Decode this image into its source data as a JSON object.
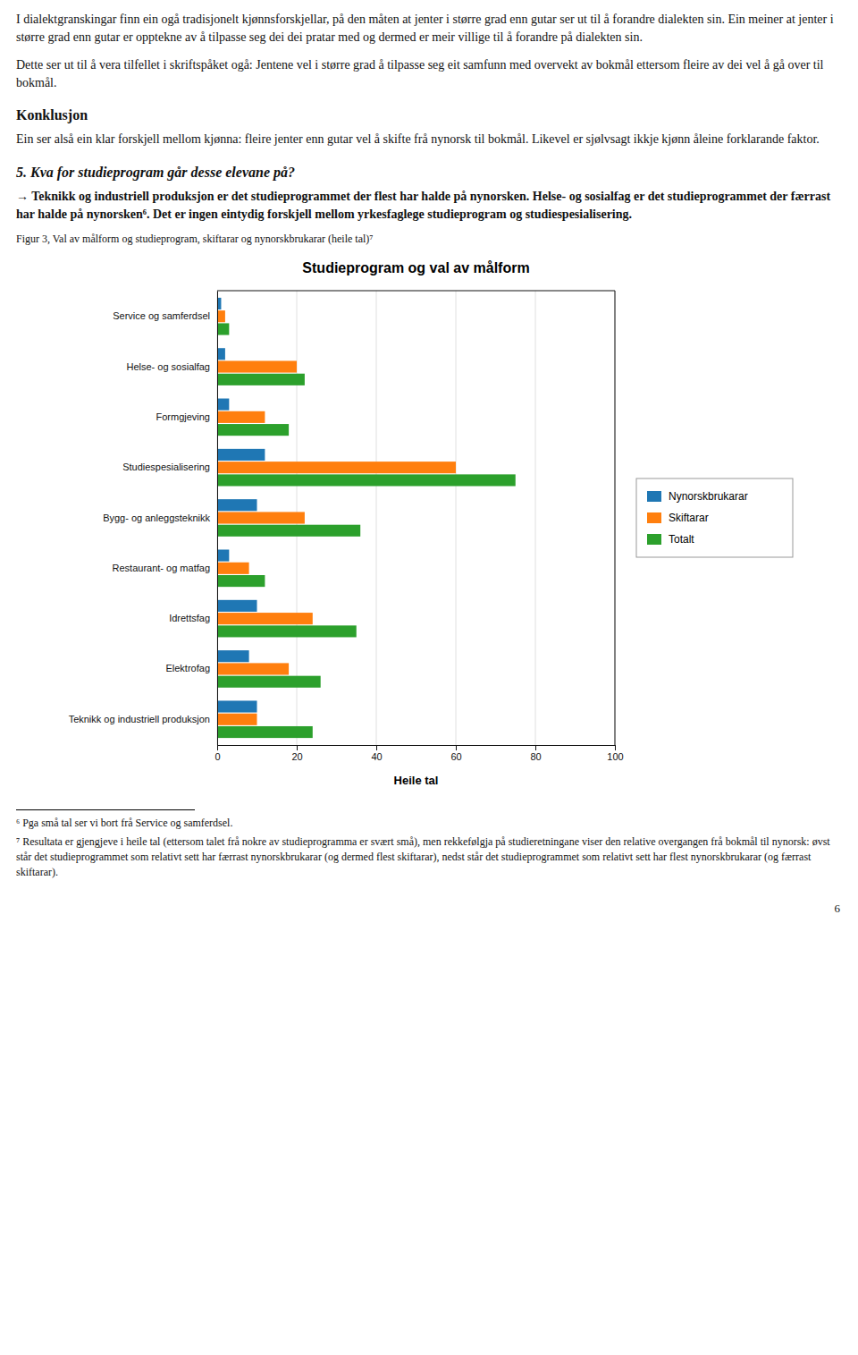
{
  "page_text": [
    {
      "kind": "paragraph",
      "text": "I dialektgranskingar finn ein ogå tradisjonelt kjønnsforskjellar, på den måten at jenter i større grad enn gutar ser ut til å forandre dialekten sin. Ein meiner at jenter i større grad enn gutar er opptekne av å tilpasse seg dei dei pratar med og dermed er meir villige til å forandre på dialekten sin."
    },
    {
      "kind": "paragraph",
      "text": "Dette ser ut til å vera tilfellet i skriftspåket ogå: Jentene vel i større grad å tilpasse seg eit samfunn med overvekt av bokmål ettersom fleire av dei vel å gå over til bokmål."
    },
    {
      "kind": "heading",
      "text": "Konklusjon"
    },
    {
      "kind": "paragraph",
      "text": "Ein ser alså ein klar forskjell mellom kjønna: fleire jenter enn gutar vel å skifte frå nynorsk til bokmål. Likevel er sjølvsagt ikkje kjønn åleine forklarande faktor."
    },
    {
      "kind": "heading-italic",
      "text": "5. Kva for studieprogram går desse elevane på?"
    },
    {
      "kind": "paragraph-bold",
      "text": "→ Teknikk og industriell produksjon er det studieprogrammet der flest har halde på nynorsken. Helse- og sosialfag er det studieprogrammet der færrast har halde på nynorsken⁶. Det er ingen eintydig forskjell mellom yrkesfaglege studieprogram og studiespesialisering."
    }
  ],
  "caption": "Figur 3, Val av målform og studieprogram, skiftarar og nynorskbrukarar (heile tal)⁷",
  "chart_data": {
    "type": "bar",
    "orientation": "horizontal",
    "title": "Studieprogram og val av målform",
    "xlabel": "Heile tal",
    "categories": [
      "Service og samferdsel",
      "Helse- og sosialfag",
      "Formgjeving",
      "Studiespesialisering",
      "Bygg- og anleggsteknikk",
      "Restaurant- og matfag",
      "Idrettsfag",
      "Elektrofag",
      "Teknikk og industriell produksjon"
    ],
    "series": [
      {
        "name": "Nynorskbrukarar",
        "values": [
          1,
          2,
          3,
          12,
          10,
          3,
          10,
          8,
          10
        ]
      },
      {
        "name": "Skiftarar",
        "values": [
          2,
          20,
          12,
          60,
          22,
          8,
          24,
          18,
          10
        ]
      },
      {
        "name": "Totalt",
        "values": [
          3,
          22,
          18,
          75,
          36,
          12,
          35,
          26,
          24
        ]
      }
    ],
    "xlim": [
      0,
      100
    ],
    "xticks": [
      0,
      20,
      40,
      60,
      80,
      100
    ],
    "grid": true,
    "legend": "right"
  },
  "footnotes": [
    "⁶ Pga små tal ser vi bort frå Service og samferdsel.",
    "⁷ Resultata er gjengjeve i heile tal (ettersom talet frå nokre av studieprogramma er svært små), men rekkefølgja på studieretningane viser den relative overgangen frå bokmål til nynorsk: øvst står det studieprogrammet som relativt sett har færrast nynorskbrukarar (og dermed flest skiftarar), nedst står det studieprogrammet som relativt sett har flest nynorskbrukarar (og færrast skiftarar)."
  ],
  "page_number": "6"
}
